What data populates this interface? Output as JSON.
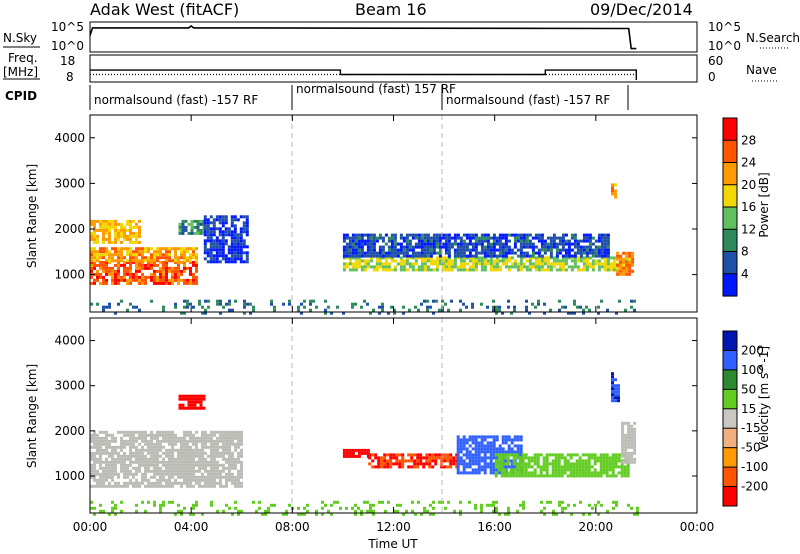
{
  "header": {
    "station": "Adak West (fitACF)",
    "beam": "Beam 16",
    "date": "09/Dec/2014"
  },
  "strips": {
    "nsky": {
      "label": "N.Sky",
      "ticks": [
        "10^5",
        "10^0"
      ],
      "right_label": "N.Search",
      "right_ticks": [
        "10^5",
        "10^0"
      ]
    },
    "freq": {
      "label_line1": "Freq.",
      "label_line2": "[MHz]",
      "ticks": [
        "18",
        "8"
      ],
      "right_label": "Nave",
      "right_ticks": [
        "60",
        "0"
      ]
    },
    "cpid": {
      "label": "CPID",
      "segments": [
        {
          "start": "00:00",
          "end": "08:00",
          "text": "normalsound (fast) -157 RF"
        },
        {
          "start": "08:00",
          "end": "14:00",
          "text": "normalsound (fast) 157 RF"
        },
        {
          "start": "14:00",
          "end": "21:30",
          "text": "normalsound (fast) -157 RF"
        }
      ]
    }
  },
  "colors": {
    "power_scale": [
      "#0018ff",
      "#1e50a8",
      "#2e8a5a",
      "#60c060",
      "#f0d800",
      "#ff9a00",
      "#ff5500",
      "#ff0000"
    ],
    "velocity_scale": [
      "#ff0000",
      "#ff5500",
      "#ff9a00",
      "#f0b080",
      "#c8c8c0",
      "#62cc22",
      "#2e8a2e",
      "#3060ff",
      "#0018b0"
    ],
    "ground_scatter": "#bcbcb6",
    "data_line": "#000000"
  },
  "chart_data": [
    {
      "type": "line",
      "panel": "N.Sky / N.Search",
      "x_unit": "hours UT",
      "xlim": [
        0,
        24
      ],
      "yscale": "log",
      "ylim": [
        1,
        100000
      ],
      "series": [
        {
          "x": [
            0.0,
            0.1,
            0.2,
            3.9,
            4.0,
            4.1,
            21.0,
            21.3,
            21.4,
            21.6
          ],
          "y": [
            1000,
            40000,
            40000,
            40000,
            100000,
            40000,
            30000,
            30000,
            2,
            2
          ]
        }
      ]
    },
    {
      "type": "line",
      "panel": "Freq. [MHz] / Nave",
      "x_unit": "hours UT",
      "xlim": [
        0,
        24
      ],
      "ylim": [
        8,
        18
      ],
      "right_ylim": [
        0,
        60
      ],
      "series": [
        {
          "x": [
            0.0,
            9.9,
            9.9,
            18.0,
            18.0,
            21.6
          ],
          "y": [
            12.5,
            12.5,
            10.5,
            10.5,
            12.5,
            12.5
          ]
        },
        {
          "x": [
            0.0,
            21.6
          ],
          "y": [
            10.5,
            10.5
          ]
        }
      ]
    },
    {
      "type": "heatmap",
      "panel": "power",
      "title": "",
      "xlabel": "",
      "ylabel": "Slant Range [km]",
      "x_unit": "hours UT",
      "xlim": [
        0,
        24
      ],
      "ylim": [
        180,
        4500
      ],
      "xticks": [
        "00:00",
        "04:00",
        "08:00",
        "12:00",
        "16:00",
        "20:00",
        "00:00"
      ],
      "yticks": [
        "1000",
        "2000",
        "3000",
        "4000"
      ],
      "colorbar_label": "Power [dB]",
      "colorbar_ticks": [
        "4",
        "8",
        "12",
        "16",
        "20",
        "24",
        "28"
      ],
      "regions": [
        {
          "x": [
            0.0,
            4.2
          ],
          "range": [
            800,
            1300
          ],
          "power": 28
        },
        {
          "x": [
            0.0,
            4.2
          ],
          "range": [
            1300,
            1600
          ],
          "power": 24
        },
        {
          "x": [
            0.0,
            2.0
          ],
          "range": [
            1700,
            2200
          ],
          "power": 22
        },
        {
          "x": [
            3.5,
            4.5
          ],
          "range": [
            1900,
            2200
          ],
          "power": 12
        },
        {
          "x": [
            4.5,
            6.2
          ],
          "range": [
            1300,
            2300
          ],
          "power": 6
        },
        {
          "x": [
            10.0,
            21.3
          ],
          "range": [
            1100,
            1400
          ],
          "power": 18
        },
        {
          "x": [
            10.0,
            20.5
          ],
          "range": [
            1400,
            1900
          ],
          "power": 7
        },
        {
          "x": [
            20.6,
            20.8
          ],
          "range": [
            2700,
            3000
          ],
          "power": 24
        },
        {
          "x": [
            20.8,
            21.4
          ],
          "range": [
            1000,
            1500
          ],
          "power": 26
        },
        {
          "x": [
            0.0,
            21.6
          ],
          "range": [
            180,
            450
          ],
          "power": 10
        }
      ]
    },
    {
      "type": "heatmap",
      "panel": "velocity",
      "title": "",
      "xlabel": "Time UT",
      "ylabel": "Slant Range [km]",
      "x_unit": "hours UT",
      "xlim": [
        0,
        24
      ],
      "ylim": [
        180,
        4500
      ],
      "xticks": [
        "00:00",
        "04:00",
        "08:00",
        "12:00",
        "16:00",
        "20:00",
        "00:00"
      ],
      "yticks": [
        "1000",
        "2000",
        "3000",
        "4000"
      ],
      "colorbar_label": "Velocity [m s^-1]",
      "colorbar_ticks": [
        "200",
        "100",
        "50",
        "15",
        "-15",
        "-50",
        "-100",
        "-200"
      ],
      "regions": [
        {
          "x": [
            0.0,
            6.0
          ],
          "range": [
            800,
            2000
          ],
          "velocity": 0,
          "ground_scatter": true
        },
        {
          "x": [
            3.5,
            4.5
          ],
          "range": [
            2500,
            2800
          ],
          "velocity": -200
        },
        {
          "x": [
            10.0,
            11.0
          ],
          "range": [
            1450,
            1600
          ],
          "velocity": -200
        },
        {
          "x": [
            11.0,
            14.5
          ],
          "range": [
            1200,
            1500
          ],
          "velocity": -100
        },
        {
          "x": [
            14.5,
            17.0
          ],
          "range": [
            1100,
            1900
          ],
          "velocity": 120
        },
        {
          "x": [
            16.0,
            21.3
          ],
          "range": [
            1000,
            1500
          ],
          "velocity": 40
        },
        {
          "x": [
            20.6,
            20.9
          ],
          "range": [
            2700,
            3300
          ],
          "velocity": 200
        },
        {
          "x": [
            21.0,
            21.5
          ],
          "range": [
            1300,
            2200
          ],
          "velocity": 0,
          "ground_scatter": true
        },
        {
          "x": [
            0.0,
            21.6
          ],
          "range": [
            180,
            450
          ],
          "velocity": 20
        }
      ]
    }
  ]
}
